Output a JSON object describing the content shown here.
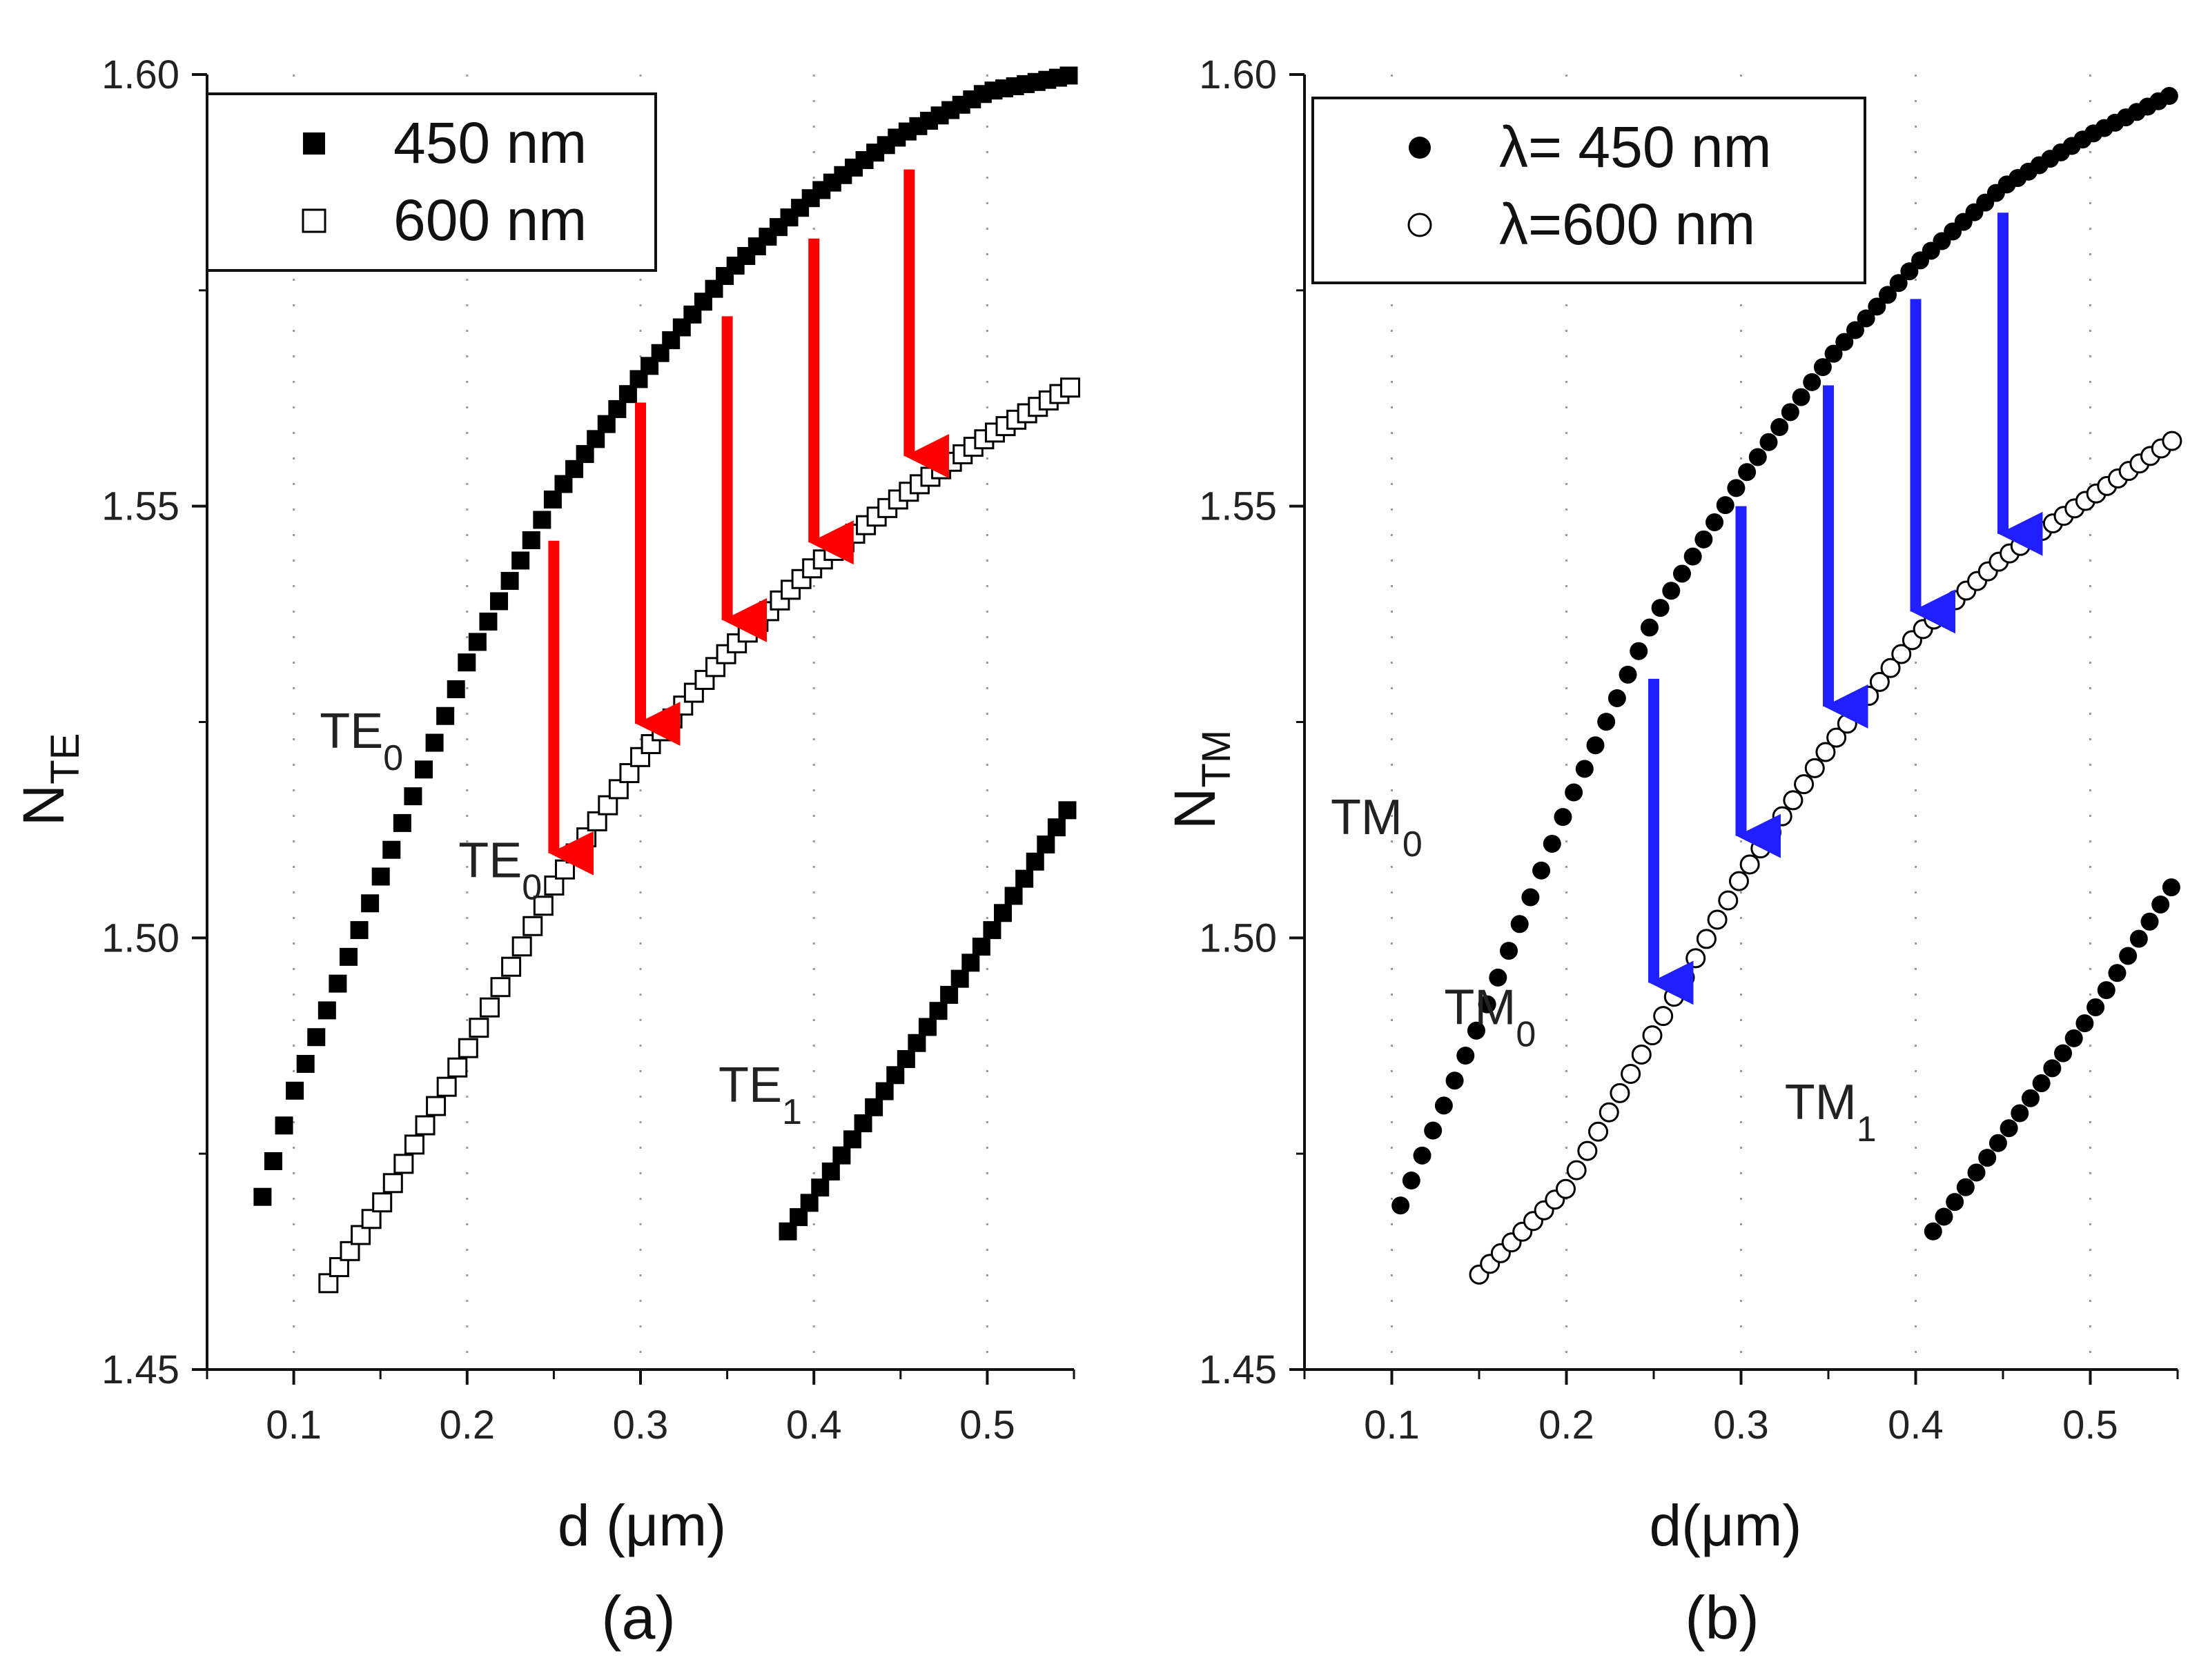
{
  "chart_data": [
    {
      "type": "scatter",
      "panel_label": "(a)",
      "xlabel": "d (μm)",
      "ylabel_main": "N",
      "ylabel_sub": "TE",
      "xlim": [
        0.05,
        0.55
      ],
      "ylim": [
        1.45,
        1.6
      ],
      "xticks": [
        0.1,
        0.2,
        0.3,
        0.4,
        0.5
      ],
      "xtick_labels": [
        "0.1",
        "0.2",
        "0.3",
        "0.4",
        "0.5"
      ],
      "yticks": [
        1.45,
        1.5,
        1.55,
        1.6
      ],
      "ytick_labels": [
        "1.45",
        "1.50",
        "1.55",
        "1.60"
      ],
      "grid": "dotted vertical",
      "legend_position": "top-left",
      "legend": [
        {
          "label": "450 nm",
          "marker": "filled-square"
        },
        {
          "label": "600 nm",
          "marker": "open-square"
        }
      ],
      "series": [
        {
          "name": "450 nm TE0",
          "marker": "filled-square",
          "x": [
            0.082,
            0.1,
            0.15,
            0.2,
            0.25,
            0.3,
            0.35,
            0.4,
            0.45,
            0.5,
            0.55
          ],
          "y": [
            1.47,
            1.482,
            1.507,
            1.532,
            1.551,
            1.565,
            1.577,
            1.586,
            1.593,
            1.598,
            1.6
          ]
        },
        {
          "name": "600 nm TE0",
          "marker": "open-square",
          "x": [
            0.12,
            0.15,
            0.2,
            0.25,
            0.3,
            0.35,
            0.4,
            0.45,
            0.5,
            0.55
          ],
          "y": [
            1.46,
            1.469,
            1.487,
            1.506,
            1.521,
            1.533,
            1.543,
            1.551,
            1.558,
            1.564
          ]
        },
        {
          "name": "450 nm TE1",
          "marker": "filled-square",
          "x": [
            0.385,
            0.4,
            0.45,
            0.5,
            0.55
          ],
          "y": [
            1.466,
            1.47,
            1.485,
            1.5,
            1.516
          ]
        }
      ],
      "arrows": [
        {
          "x": 0.25,
          "from": 1.546,
          "to": 1.509
        },
        {
          "x": 0.3,
          "from": 1.562,
          "to": 1.524
        },
        {
          "x": 0.35,
          "from": 1.572,
          "to": 1.536
        },
        {
          "x": 0.4,
          "from": 1.581,
          "to": 1.545
        },
        {
          "x": 0.455,
          "from": 1.589,
          "to": 1.555
        }
      ],
      "arrow_color": "#ff0000",
      "annotations": [
        {
          "text": "TE",
          "sub": "0",
          "x": 0.115,
          "y": 1.522
        },
        {
          "text": "TE",
          "sub": "0",
          "x": 0.195,
          "y": 1.507
        },
        {
          "text": "TE",
          "sub": "1",
          "x": 0.345,
          "y": 1.481
        }
      ]
    },
    {
      "type": "scatter",
      "panel_label": "(b)",
      "xlabel": "d(μm)",
      "ylabel_main": "N",
      "ylabel_sub": "TM",
      "xlim": [
        0.05,
        0.55
      ],
      "ylim": [
        1.45,
        1.6
      ],
      "xticks": [
        0.1,
        0.2,
        0.3,
        0.4,
        0.5
      ],
      "xtick_labels": [
        "0.1",
        "0.2",
        "0.3",
        "0.4",
        "0.5"
      ],
      "yticks": [
        1.45,
        1.5,
        1.55,
        1.6
      ],
      "ytick_labels": [
        "1.45",
        "1.50",
        "1.55",
        "1.60"
      ],
      "grid": "dotted vertical",
      "legend_position": "top-left",
      "legend": [
        {
          "label": "λ= 450 nm",
          "marker": "filled-circle"
        },
        {
          "label": "λ=600 nm",
          "marker": "open-circle"
        }
      ],
      "series": [
        {
          "name": "λ= 450 nm TM0",
          "marker": "filled-circle",
          "x": [
            0.105,
            0.15,
            0.2,
            0.25,
            0.3,
            0.35,
            0.4,
            0.45,
            0.5,
            0.55
          ],
          "y": [
            1.469,
            1.49,
            1.515,
            1.537,
            1.553,
            1.567,
            1.578,
            1.587,
            1.593,
            1.598
          ]
        },
        {
          "name": "λ=600 nm TM0",
          "marker": "open-circle",
          "x": [
            0.15,
            0.2,
            0.25,
            0.3,
            0.35,
            0.4,
            0.45,
            0.5,
            0.55
          ],
          "y": [
            1.461,
            1.471,
            1.489,
            1.507,
            1.522,
            1.535,
            1.544,
            1.551,
            1.558
          ]
        },
        {
          "name": "λ= 450 nm TM1",
          "marker": "filled-circle",
          "x": [
            0.41,
            0.45,
            0.5,
            0.55
          ],
          "y": [
            1.466,
            1.477,
            1.491,
            1.507
          ]
        }
      ],
      "arrows": [
        {
          "x": 0.25,
          "from": 1.53,
          "to": 1.494
        },
        {
          "x": 0.3,
          "from": 1.55,
          "to": 1.511
        },
        {
          "x": 0.35,
          "from": 1.564,
          "to": 1.526
        },
        {
          "x": 0.4,
          "from": 1.574,
          "to": 1.537
        },
        {
          "x": 0.45,
          "from": 1.584,
          "to": 1.546
        }
      ],
      "arrow_color": "#1f1fff",
      "annotations": [
        {
          "text": "TM",
          "sub": "0",
          "x": 0.065,
          "y": 1.512
        },
        {
          "text": "TM",
          "sub": "0",
          "x": 0.13,
          "y": 1.49
        },
        {
          "text": "TM",
          "sub": "1",
          "x": 0.325,
          "y": 1.479
        }
      ]
    }
  ]
}
